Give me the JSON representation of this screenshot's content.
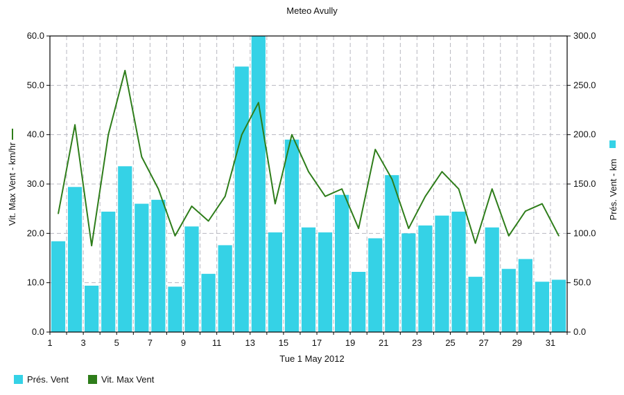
{
  "chart_data": {
    "type": "bar",
    "title": "Meteo  Avully",
    "xlabel": "Tue 1 May 2012",
    "ylabel": "Vit. Max Vent - km/hr",
    "y2label": "Prés. Vent - km",
    "x_ticks": [
      "1",
      "3",
      "5",
      "7",
      "9",
      "11",
      "13",
      "15",
      "17",
      "19",
      "21",
      "23",
      "25",
      "27",
      "29",
      "31"
    ],
    "y_ticks": [
      "0.0",
      "10.0",
      "20.0",
      "30.0",
      "40.0",
      "50.0",
      "60.0"
    ],
    "y2_ticks": [
      "0.0",
      "50.0",
      "100.0",
      "150.0",
      "200.0",
      "250.0",
      "300.0"
    ],
    "ylim": [
      0,
      60
    ],
    "y2lim": [
      0,
      300
    ],
    "xlim": [
      1,
      32
    ],
    "grid": true,
    "legend_position": "bottom-left",
    "x": [
      1,
      2,
      3,
      4,
      5,
      6,
      7,
      8,
      9,
      10,
      11,
      12,
      13,
      14,
      15,
      16,
      17,
      18,
      19,
      20,
      21,
      22,
      23,
      24,
      25,
      26,
      27,
      28,
      29,
      30,
      31
    ],
    "series": [
      {
        "name": "Prés. Vent",
        "type": "bar",
        "axis": "right",
        "color": "#35D2E6",
        "values": [
          92,
          147,
          47,
          122,
          168,
          130,
          134,
          46,
          107,
          59,
          88,
          269,
          300,
          101,
          195,
          106,
          101,
          139,
          61,
          95,
          159,
          100,
          108,
          118,
          122,
          56,
          106,
          64,
          74,
          51,
          53
        ]
      },
      {
        "name": "Vit. Max Vent",
        "type": "line",
        "axis": "left",
        "color": "#2E7D1A",
        "values": [
          24.0,
          42.0,
          17.5,
          40.0,
          53.0,
          35.5,
          29.0,
          19.5,
          25.5,
          22.5,
          27.5,
          40.0,
          46.5,
          26.0,
          40.0,
          32.5,
          27.5,
          29.0,
          21.0,
          37.0,
          31.0,
          21.0,
          27.5,
          32.5,
          29.0,
          18.0,
          29.0,
          19.5,
          24.5,
          26.0,
          19.5
        ]
      }
    ]
  }
}
